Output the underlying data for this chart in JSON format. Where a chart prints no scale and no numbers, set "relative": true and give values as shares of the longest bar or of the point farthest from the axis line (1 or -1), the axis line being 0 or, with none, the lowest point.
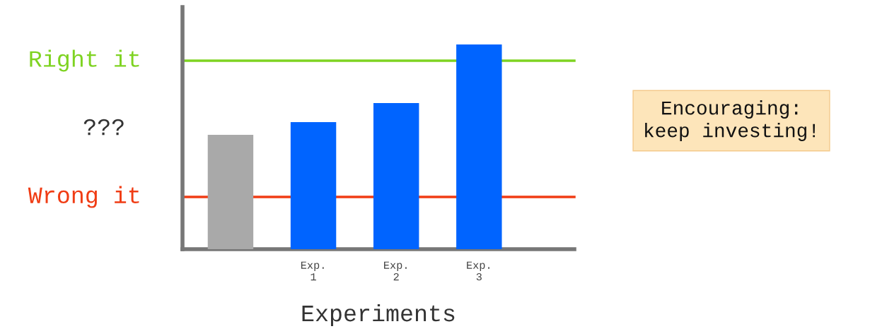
{
  "chart_data": {
    "type": "bar",
    "relative": true,
    "xlabel": "Experiments",
    "categories": [
      null,
      "Exp.\n1",
      "Exp.\n2",
      "Exp.\n3"
    ],
    "values": [
      0.559,
      0.621,
      0.714,
      1
    ],
    "colors": [
      "#a9a9a9",
      "#0064ff",
      "#0064ff",
      "#0064ff"
    ],
    "ref_lines": [
      {
        "axis": "y",
        "value": 0.921,
        "label": "Right it",
        "color": "#7ed321"
      },
      {
        "axis": "y",
        "value": 0.255,
        "label": "Wrong it",
        "color": "#f03c14"
      }
    ],
    "annotations": [
      "???",
      "Encouraging:\nkeep investing!"
    ],
    "grid": false,
    "legend": false
  }
}
